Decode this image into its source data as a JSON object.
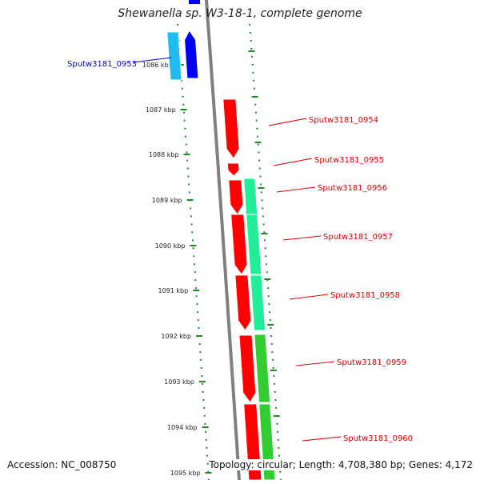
{
  "header": {
    "title": "Shewanella sp. W3-18-1, complete genome"
  },
  "footer": {
    "accession": "Accession: NC_008750",
    "summary": "Topology: circular; Length: 4,708,380 bp; Genes: 4,172"
  },
  "scale_ticks": [
    {
      "label": "1086 kbp"
    },
    {
      "label": "1087 kbp"
    },
    {
      "label": "1088 kbp"
    },
    {
      "label": "1089 kbp"
    },
    {
      "label": "1090 kbp"
    },
    {
      "label": "1091 kbp"
    },
    {
      "label": "1092 kbp"
    },
    {
      "label": "1093 kbp"
    },
    {
      "label": "1094 kbp"
    },
    {
      "label": "1095 kbp"
    }
  ],
  "gene_labels": [
    {
      "text": "Sputw3181_0953",
      "color": "#0000cc"
    },
    {
      "text": "Sputw3181_0954",
      "color": "#dd0000"
    },
    {
      "text": "Sputw3181_0955",
      "color": "#dd0000"
    },
    {
      "text": "Sputw3181_0956",
      "color": "#dd0000"
    },
    {
      "text": "Sputw3181_0957",
      "color": "#dd0000"
    },
    {
      "text": "Sputw3181_0958",
      "color": "#dd0000"
    },
    {
      "text": "Sputw3181_0959",
      "color": "#dd0000"
    },
    {
      "text": "Sputw3181_0960",
      "color": "#dd0000"
    }
  ],
  "colors": {
    "backbone": "#7f7f7f",
    "forward_gene": "#ff0000",
    "reverse_gene": "#0000ee",
    "cog_green": "#33cc33",
    "cog_teal": "#22ee99",
    "cog_cyan": "#22bbee",
    "ring_dots": "#228822"
  }
}
